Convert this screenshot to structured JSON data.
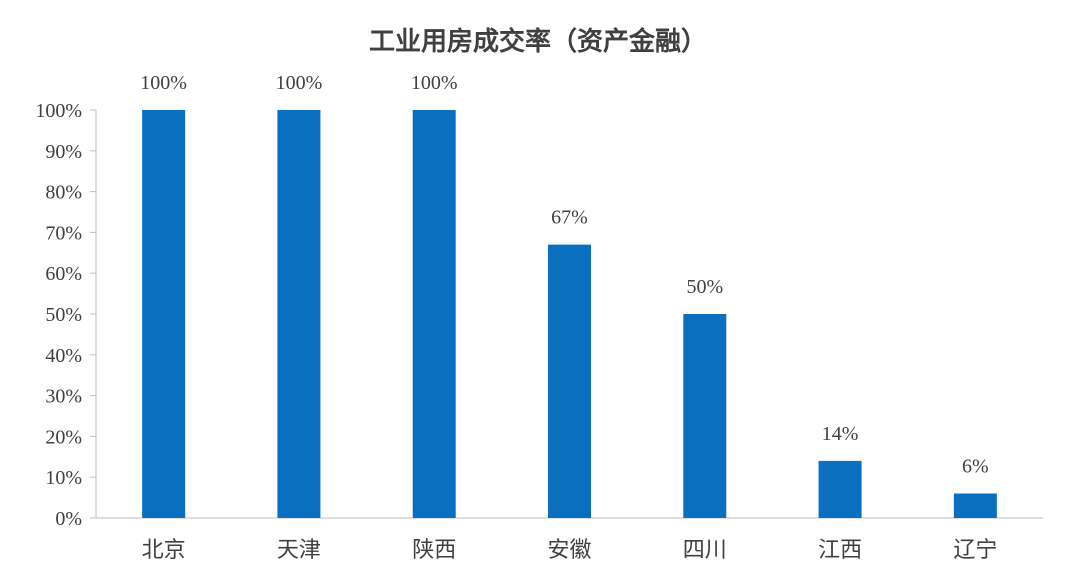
{
  "chart_data": {
    "type": "bar",
    "title": "工业用房成交率（资产金融）",
    "categories": [
      "北京",
      "天津",
      "陕西",
      "安徽",
      "四川",
      "江西",
      "辽宁"
    ],
    "values": [
      100,
      100,
      100,
      67,
      50,
      14,
      6
    ],
    "data_labels": [
      "100%",
      "100%",
      "100%",
      "67%",
      "50%",
      "14%",
      "6%"
    ],
    "yticks": [
      "0%",
      "10%",
      "20%",
      "30%",
      "40%",
      "50%",
      "60%",
      "70%",
      "80%",
      "90%",
      "100%"
    ],
    "ylim": [
      0,
      100
    ],
    "grid": false,
    "legend": "none",
    "bar_color": "#0a6fbf",
    "text_color": "#404040"
  }
}
